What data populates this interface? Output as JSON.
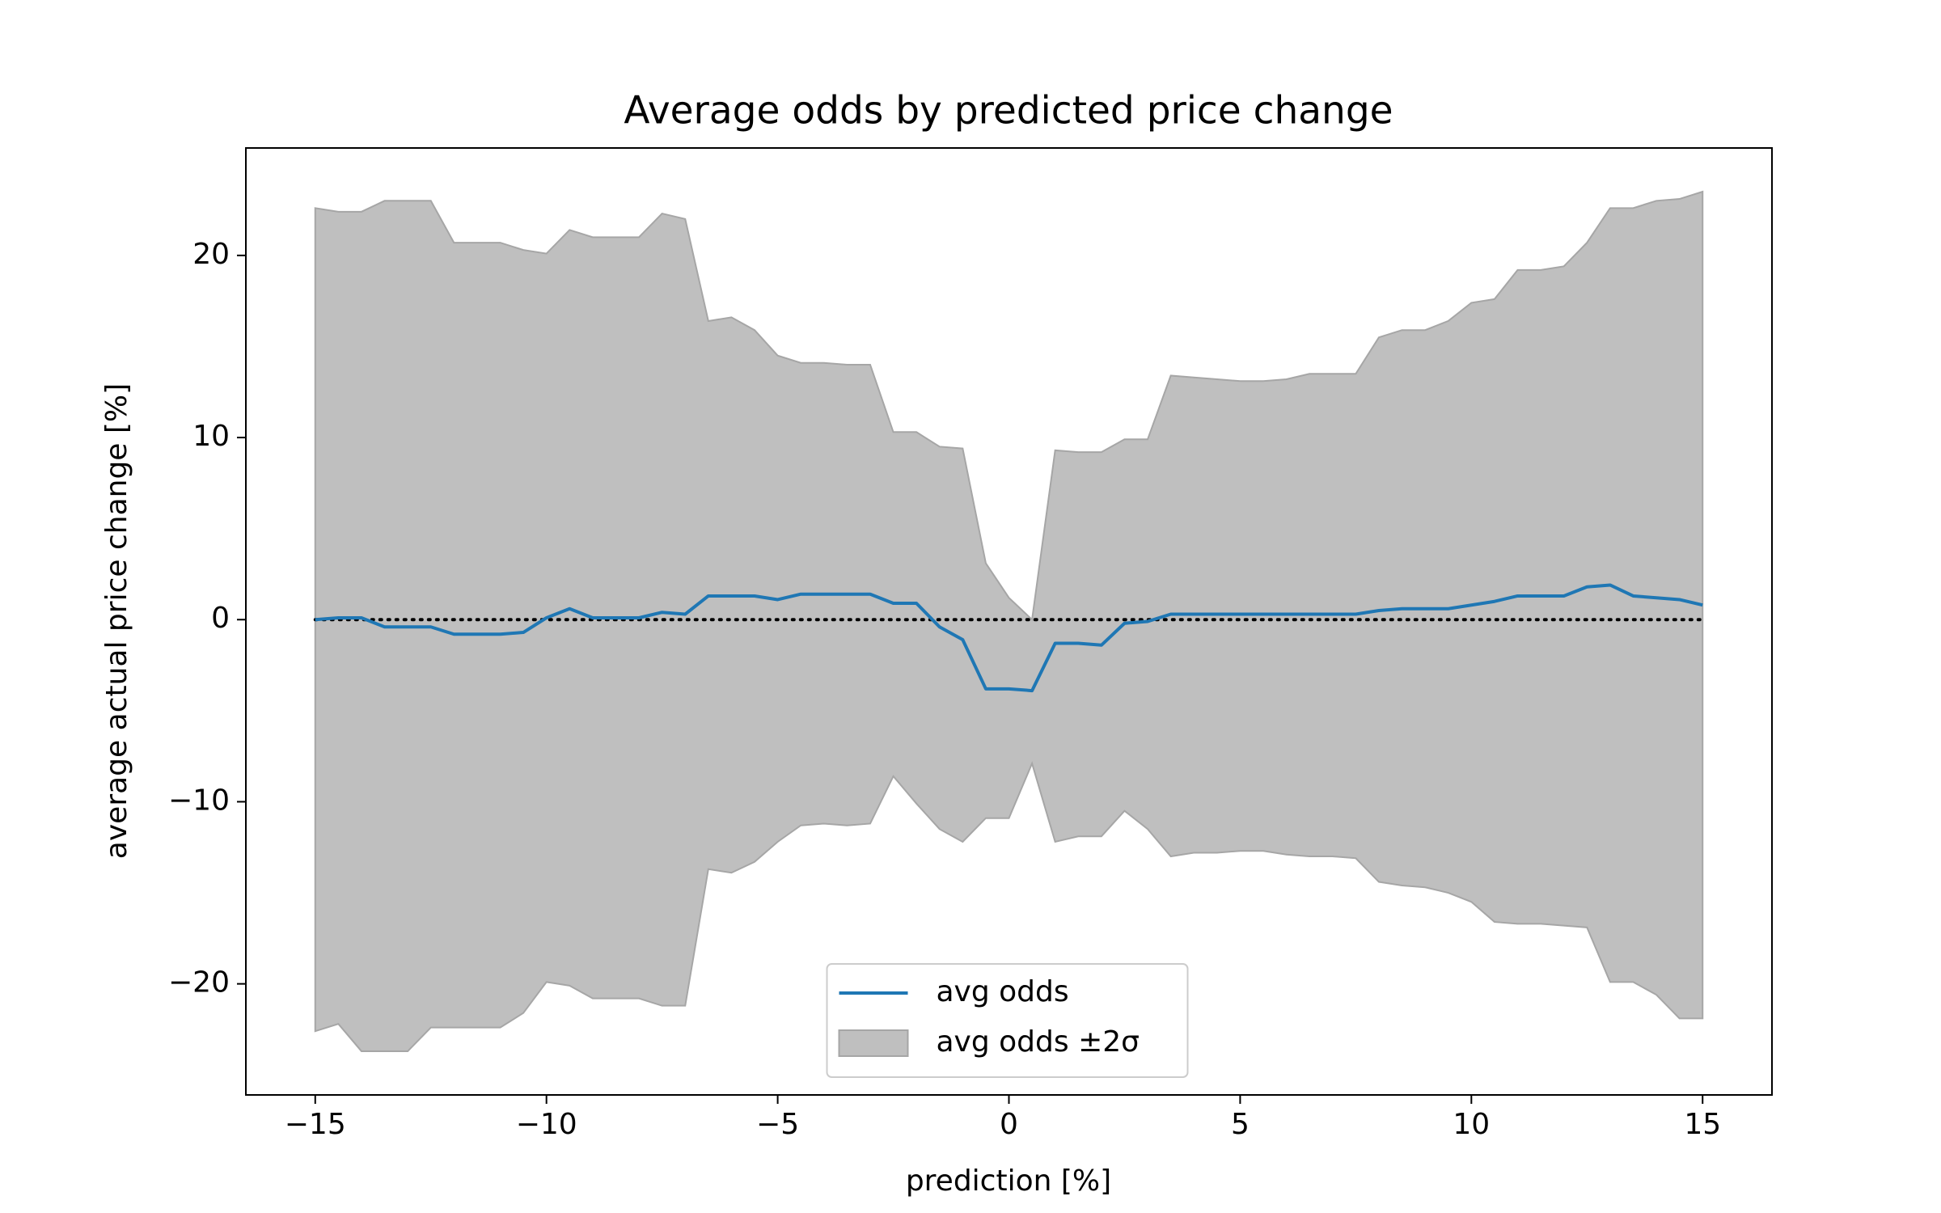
{
  "chart_data": {
    "type": "line_band",
    "title": "Average odds by predicted price change",
    "xlabel": "prediction [%]",
    "ylabel": "average actual price change [%]",
    "x": [
      -15,
      -14.5,
      -14,
      -13.5,
      -13,
      -12.5,
      -12,
      -11.5,
      -11,
      -10.5,
      -10,
      -9.5,
      -9,
      -8.5,
      -8,
      -7.5,
      -7,
      -6.5,
      -6,
      -5.5,
      -5,
      -4.5,
      -4,
      -3.5,
      -3,
      -2.5,
      -2,
      -1.5,
      -1,
      -0.5,
      0,
      0.5,
      1,
      1.5,
      2,
      2.5,
      3,
      3.5,
      4,
      4.5,
      5,
      5.5,
      6,
      6.5,
      7,
      7.5,
      8,
      8.5,
      9,
      9.5,
      10,
      10.5,
      11,
      11.5,
      12,
      12.5,
      13,
      13.5,
      14,
      14.5,
      15
    ],
    "series": [
      {
        "name": "avg odds",
        "color": "#1f77b4",
        "values": [
          0,
          0.1,
          0.1,
          -0.4,
          -0.4,
          -0.4,
          -0.8,
          -0.8,
          -0.8,
          -0.7,
          0.1,
          0.6,
          0.1,
          0.1,
          0.1,
          0.4,
          0.3,
          1.3,
          1.3,
          1.3,
          1.1,
          1.4,
          1.4,
          1.4,
          1.4,
          0.9,
          0.9,
          -0.4,
          -1.1,
          -3.8,
          -3.8,
          -3.9,
          -1.3,
          -1.3,
          -1.4,
          -0.2,
          -0.1,
          0.3,
          0.3,
          0.3,
          0.3,
          0.3,
          0.3,
          0.3,
          0.3,
          0.3,
          0.5,
          0.6,
          0.6,
          0.6,
          0.8,
          1.0,
          1.3,
          1.3,
          1.3,
          1.8,
          1.9,
          1.3,
          1.2,
          1.1,
          0.8
        ]
      }
    ],
    "band": {
      "name": "avg odds ±2σ",
      "color": "#bfbfbf",
      "edge_color": "#a6a6a6",
      "upper": [
        22.6,
        22.4,
        22.4,
        23,
        23,
        23,
        20.7,
        20.7,
        20.7,
        20.3,
        20.1,
        21.4,
        21,
        21,
        21,
        22.3,
        22,
        16.4,
        16.6,
        15.9,
        14.5,
        14.1,
        14.1,
        14,
        14,
        10.3,
        10.3,
        9.5,
        9.4,
        3.1,
        1.2,
        0,
        9.3,
        9.2,
        9.2,
        9.9,
        9.9,
        13.4,
        13.3,
        13.2,
        13.1,
        13.1,
        13.2,
        13.5,
        13.5,
        13.5,
        15.5,
        15.9,
        15.9,
        16.4,
        17.4,
        17.6,
        19.2,
        19.2,
        19.4,
        20.7,
        22.6,
        22.6,
        23,
        23.1,
        23.5
      ],
      "lower": [
        -22.6,
        -22.2,
        -23.7,
        -23.7,
        -23.7,
        -22.4,
        -22.4,
        -22.4,
        -22.4,
        -21.6,
        -19.9,
        -20.1,
        -20.8,
        -20.8,
        -20.8,
        -21.2,
        -21.2,
        -13.7,
        -13.9,
        -13.3,
        -12.2,
        -11.3,
        -11.2,
        -11.3,
        -11.2,
        -8.6,
        -10.1,
        -11.5,
        -12.2,
        -10.9,
        -10.9,
        -7.9,
        -12.2,
        -11.9,
        -11.9,
        -10.5,
        -11.5,
        -13,
        -12.8,
        -12.8,
        -12.7,
        -12.7,
        -12.9,
        -13,
        -13,
        -13.1,
        -14.4,
        -14.6,
        -14.7,
        -15,
        -15.5,
        -16.6,
        -16.7,
        -16.7,
        -16.8,
        -16.9,
        -19.9,
        -19.9,
        -20.6,
        -21.9,
        -21.9
      ]
    },
    "reference_line": 0,
    "xlim": [
      -16.5,
      16.5
    ],
    "ylim": [
      -26.1,
      25.9
    ],
    "xticks": [
      {
        "value": -15,
        "label": "−15"
      },
      {
        "value": -10,
        "label": "−10"
      },
      {
        "value": -5,
        "label": "−5"
      },
      0,
      5,
      10,
      15
    ],
    "yticks": [
      {
        "value": -20,
        "label": "−20"
      },
      {
        "value": -10,
        "label": "−10"
      },
      0,
      10,
      20
    ],
    "legend": "lower center"
  }
}
